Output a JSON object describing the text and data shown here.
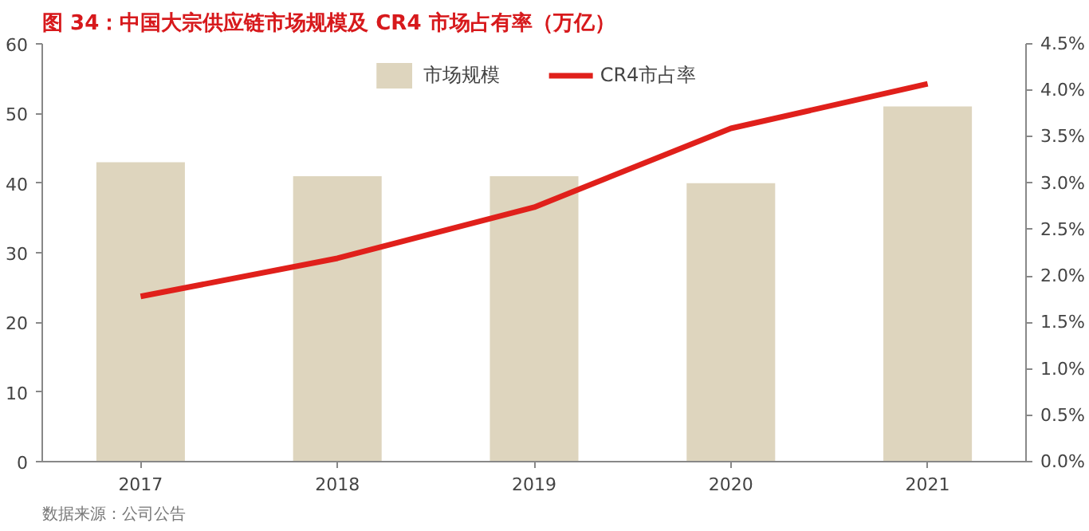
{
  "chart_data": {
    "type": "bar",
    "title": "图 34：中国大宗供应链市场规模及 CR4 市场占有率（万亿）",
    "categories": [
      "2017",
      "2018",
      "2019",
      "2020",
      "2021"
    ],
    "series": [
      {
        "name": "市场规模",
        "color": "#ded5be",
        "values": [
          43,
          41,
          41,
          40,
          51
        ]
      },
      {
        "name": "CR4市占率",
        "type": "line",
        "axis": "y2",
        "color": "#e0201b",
        "values": [
          1.78,
          2.19,
          2.74,
          3.59,
          4.07
        ]
      }
    ],
    "ylim": [
      0,
      60
    ],
    "yticks": [
      0,
      10,
      20,
      30,
      40,
      50,
      60
    ],
    "y2lim": [
      0,
      4.5
    ],
    "y2ticks": [
      {
        "value": 0,
        "label": "0.0%"
      },
      {
        "value": 0.5,
        "label": "0.5%"
      },
      {
        "value": 1,
        "label": "1.0%"
      },
      {
        "value": 1.5,
        "label": "1.5%"
      },
      {
        "value": 2,
        "label": "2.0%"
      },
      {
        "value": 2.5,
        "label": "2.5%"
      },
      {
        "value": 3,
        "label": "3.0%"
      },
      {
        "value": 3.5,
        "label": "3.5%"
      },
      {
        "value": 4,
        "label": "4.0%"
      },
      {
        "value": 4.5,
        "label": "4.5%"
      }
    ],
    "grid": false,
    "legend": "top",
    "annotations": [
      "数据来源：公司公告"
    ]
  }
}
